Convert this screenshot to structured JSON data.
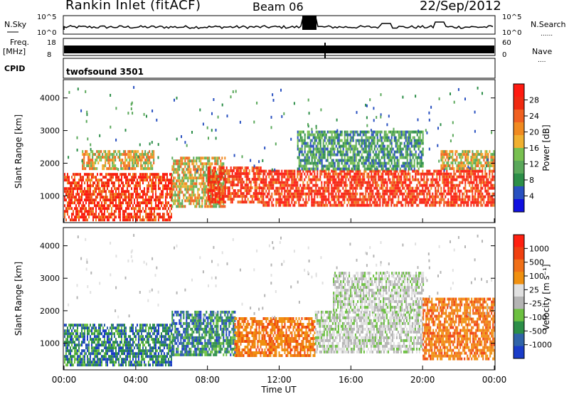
{
  "header": {
    "station": "Rankin Inlet (fitACF)",
    "beam": "Beam 06",
    "date": "22/Sep/2012"
  },
  "aux_panels": {
    "nsky_label": "N.Sky",
    "nsky_ticks": [
      "10^5",
      "10^0"
    ],
    "nsearch_label": "N.Search",
    "freq_label": "Freq.",
    "freq_unit": "[MHz]",
    "freq_ticks": [
      "18",
      "8"
    ],
    "nave_ticks": [
      "60",
      "0"
    ],
    "nave_label": "Nave",
    "cpid_label": "CPID",
    "cpid_value": "twofsound 3501"
  },
  "chart_data": [
    {
      "type": "heatmap",
      "name": "power",
      "ylabel": "Slant Range [km]",
      "xlabel": "",
      "yticks": [
        "1000",
        "2000",
        "3000",
        "4000"
      ],
      "ylim": [
        180,
        4560
      ],
      "xlim": [
        0,
        24
      ],
      "colorbar": {
        "label": "Power [dB]",
        "ticks": [
          "4",
          "8",
          "12",
          "16",
          "20",
          "24",
          "28"
        ],
        "colors": [
          "#1010e0",
          "#2850c0",
          "#2c8e48",
          "#5aa85a",
          "#78c050",
          "#f0b030",
          "#f08a20",
          "#f06020",
          "#f02a10",
          "#ff1a10"
        ]
      },
      "echo_regions": [
        {
          "t0": 0,
          "t1": 6,
          "r0": 300,
          "r1": 1700,
          "level": "high"
        },
        {
          "t0": 1,
          "t1": 5,
          "r0": 1800,
          "r1": 2400,
          "level": "mid"
        },
        {
          "t0": 6,
          "t1": 9,
          "r0": 700,
          "r1": 2200,
          "level": "mid"
        },
        {
          "t0": 8,
          "t1": 11,
          "r0": 800,
          "r1": 1900,
          "level": "high"
        },
        {
          "t0": 11,
          "t1": 24,
          "r0": 700,
          "r1": 1800,
          "level": "high"
        },
        {
          "t0": 13,
          "t1": 20,
          "r0": 1800,
          "r1": 3000,
          "level": "low"
        },
        {
          "t0": 21,
          "t1": 24,
          "r0": 1800,
          "r1": 2400,
          "level": "mid"
        }
      ]
    },
    {
      "type": "heatmap",
      "name": "velocity",
      "ylabel": "Slant Range [km]",
      "xlabel": "Time UT",
      "yticks": [
        "1000",
        "2000",
        "3000",
        "4000"
      ],
      "xticks": [
        "00:00",
        "04:00",
        "08:00",
        "12:00",
        "16:00",
        "20:00",
        "00:00"
      ],
      "ylim": [
        180,
        4560
      ],
      "xlim": [
        0,
        24
      ],
      "colorbar": {
        "label": "Velocity [m s⁻¹]",
        "ticks": [
          "1000",
          "500",
          "100",
          "25",
          "-25",
          "-100",
          "-500",
          "-1000"
        ],
        "colors": [
          "#1a3cc8",
          "#3064a8",
          "#2c8e48",
          "#6cc040",
          "#b4b4b4",
          "#e0e0e0",
          "#f09010",
          "#f07018",
          "#f04010",
          "#ff2010"
        ]
      },
      "echo_regions": [
        {
          "t0": 0,
          "t1": 6,
          "r0": 300,
          "r1": 1600,
          "level": "toward"
        },
        {
          "t0": 6,
          "t1": 9.5,
          "r0": 600,
          "r1": 2000,
          "level": "toward"
        },
        {
          "t0": 9.5,
          "t1": 14,
          "r0": 600,
          "r1": 1800,
          "level": "away"
        },
        {
          "t0": 14,
          "t1": 20,
          "r0": 700,
          "r1": 2000,
          "level": "near-zero"
        },
        {
          "t0": 15,
          "t1": 20,
          "r0": 2000,
          "r1": 3200,
          "level": "near-zero"
        },
        {
          "t0": 20,
          "t1": 24,
          "r0": 500,
          "r1": 2400,
          "level": "away"
        }
      ]
    }
  ]
}
